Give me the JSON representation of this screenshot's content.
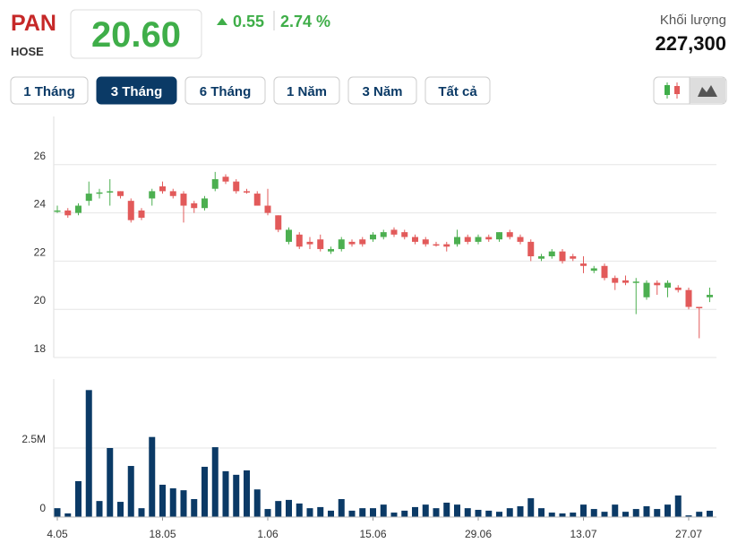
{
  "header": {
    "ticker": "PAN",
    "exchange": "HOSE",
    "price": "20.60",
    "change": "0.55",
    "change_percent": "2.74 %",
    "volume_label": "Khối lượng",
    "volume": "227,300"
  },
  "buttons": [
    "1 Tháng",
    "3 Tháng",
    "6 Tháng",
    "1 Năm",
    "3 Năm",
    "Tất cả"
  ],
  "active_button": 1,
  "chart_data": [
    {
      "type": "candlestick",
      "up_color": "#4caf50",
      "down_color": "#e25a5a",
      "ylim": [
        18,
        28
      ],
      "yticks": [
        18,
        20,
        22,
        24,
        26
      ],
      "grid": true,
      "open": [
        24.1,
        24.1,
        24.0,
        24.5,
        24.8,
        24.85,
        24.9,
        24.5,
        24.1,
        24.6,
        25.1,
        24.9,
        24.8,
        24.4,
        24.2,
        25.0,
        25.5,
        25.3,
        24.9,
        24.8,
        24.3,
        23.9,
        22.8,
        23.1,
        22.8,
        22.9,
        22.4,
        22.5,
        22.8,
        22.9,
        22.9,
        23.0,
        23.3,
        23.2,
        23.0,
        22.9,
        22.7,
        22.7,
        22.7,
        23.0,
        22.8,
        23.0,
        22.9,
        23.2,
        23.0,
        22.8,
        22.1,
        22.2,
        22.4,
        22.2,
        21.9,
        21.6,
        21.8,
        21.3,
        21.2,
        21.1,
        20.5,
        21.1,
        20.9,
        20.9,
        20.8,
        20.1,
        20.5
      ],
      "high": [
        24.3,
        24.2,
        24.4,
        25.3,
        25.0,
        25.4,
        24.9,
        24.6,
        24.2,
        25.0,
        25.3,
        25.0,
        24.9,
        24.5,
        24.7,
        25.7,
        25.6,
        25.4,
        25.0,
        24.9,
        25.0,
        23.9,
        23.4,
        23.2,
        23.0,
        23.1,
        22.6,
        23.0,
        22.9,
        23.0,
        23.2,
        23.3,
        23.4,
        23.3,
        23.1,
        23.0,
        22.8,
        22.8,
        23.3,
        23.1,
        23.1,
        23.1,
        23.2,
        23.3,
        23.1,
        22.9,
        22.3,
        22.5,
        22.5,
        22.3,
        22.2,
        21.8,
        21.9,
        21.4,
        21.4,
        21.3,
        21.2,
        21.2,
        21.2,
        21.0,
        20.9,
        20.1,
        20.9
      ],
      "low": [
        24.0,
        23.8,
        23.9,
        24.3,
        24.6,
        24.3,
        24.6,
        23.6,
        23.7,
        24.3,
        24.8,
        24.6,
        23.6,
        24.0,
        24.1,
        24.9,
        25.2,
        24.8,
        24.8,
        24.3,
        23.9,
        23.2,
        22.7,
        22.5,
        22.5,
        22.4,
        22.3,
        22.4,
        22.6,
        22.6,
        22.8,
        22.9,
        23.0,
        22.9,
        22.7,
        22.6,
        22.6,
        22.4,
        22.6,
        22.7,
        22.7,
        22.8,
        22.8,
        22.9,
        22.7,
        22.0,
        22.0,
        22.1,
        21.9,
        22.0,
        21.5,
        21.5,
        21.2,
        20.8,
        21.0,
        19.8,
        20.4,
        20.6,
        20.5,
        20.7,
        20.0,
        18.8,
        20.3
      ],
      "close": [
        24.1,
        23.9,
        24.3,
        24.8,
        24.85,
        24.9,
        24.7,
        23.7,
        23.8,
        24.9,
        24.9,
        24.7,
        24.3,
        24.2,
        24.6,
        25.4,
        25.3,
        24.9,
        24.85,
        24.3,
        24.0,
        23.3,
        23.3,
        22.6,
        22.7,
        22.5,
        22.5,
        22.9,
        22.7,
        22.7,
        23.1,
        23.2,
        23.1,
        23.0,
        22.8,
        22.7,
        22.65,
        22.6,
        23.0,
        22.8,
        23.0,
        22.9,
        23.2,
        23.0,
        22.8,
        22.2,
        22.2,
        22.4,
        22.0,
        22.1,
        21.8,
        21.7,
        21.3,
        21.1,
        21.1,
        21.15,
        21.1,
        21.0,
        21.1,
        20.8,
        20.1,
        20.05,
        20.6
      ]
    },
    {
      "type": "bar",
      "color": "#0b3a66",
      "categories": [
        "4.05",
        null,
        null,
        null,
        null,
        null,
        null,
        null,
        null,
        null,
        "18.05",
        null,
        null,
        null,
        null,
        null,
        null,
        null,
        null,
        null,
        "1.06",
        null,
        null,
        null,
        null,
        null,
        null,
        null,
        null,
        null,
        "15.06",
        null,
        null,
        null,
        null,
        null,
        null,
        null,
        null,
        null,
        "29.06",
        null,
        null,
        null,
        null,
        null,
        null,
        null,
        null,
        null,
        "13.07",
        null,
        null,
        null,
        null,
        null,
        null,
        null,
        null,
        null,
        "27.07",
        null,
        null
      ],
      "values": [
        320000,
        130000,
        1300000,
        4600000,
        580000,
        2500000,
        550000,
        1850000,
        320000,
        2900000,
        1170000,
        1040000,
        970000,
        650000,
        1820000,
        2530000,
        1660000,
        1530000,
        1690000,
        1000000,
        290000,
        580000,
        620000,
        490000,
        320000,
        360000,
        230000,
        650000,
        230000,
        320000,
        320000,
        450000,
        160000,
        230000,
        360000,
        450000,
        320000,
        520000,
        450000,
        320000,
        260000,
        230000,
        190000,
        320000,
        390000,
        680000,
        320000,
        160000,
        130000,
        160000,
        450000,
        290000,
        190000,
        450000,
        190000,
        290000,
        390000,
        290000,
        450000,
        780000,
        60000,
        190000,
        227300
      ],
      "ylim": [
        0,
        5000000
      ],
      "yticks": [
        0,
        {
          "value": 2500000,
          "label": "2.5M"
        }
      ],
      "grid": true
    }
  ]
}
